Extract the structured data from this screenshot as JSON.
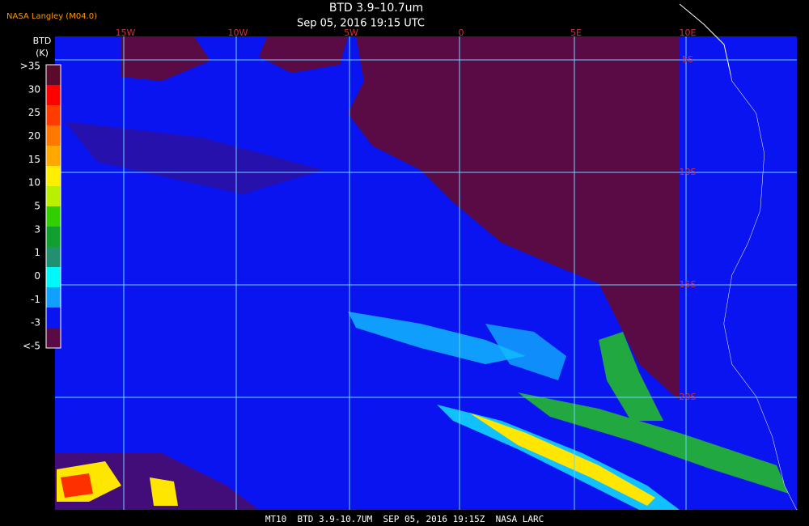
{
  "header": {
    "source": "NASA Langley (M04.0)",
    "title": "BTD 3.9–10.7um",
    "subtitle": "Sep 05, 2016 19:15 UTC"
  },
  "colorbar": {
    "title": "BTD",
    "unit": "(K)",
    "labels": [
      ">35",
      "30",
      "25",
      "20",
      "15",
      "10",
      "5",
      "3",
      "1",
      "0",
      "-1",
      "-3",
      "<-5"
    ]
  },
  "map": {
    "longitudes": [
      "15W",
      "10W",
      "5W",
      "0",
      "5E",
      "10E"
    ],
    "latitudes": [
      "5S",
      "10S",
      "15S",
      "20S"
    ]
  },
  "footer": "MT10  BTD 3.9-10.7UM  SEP 05, 2016 19:15Z  NASA LARC"
}
